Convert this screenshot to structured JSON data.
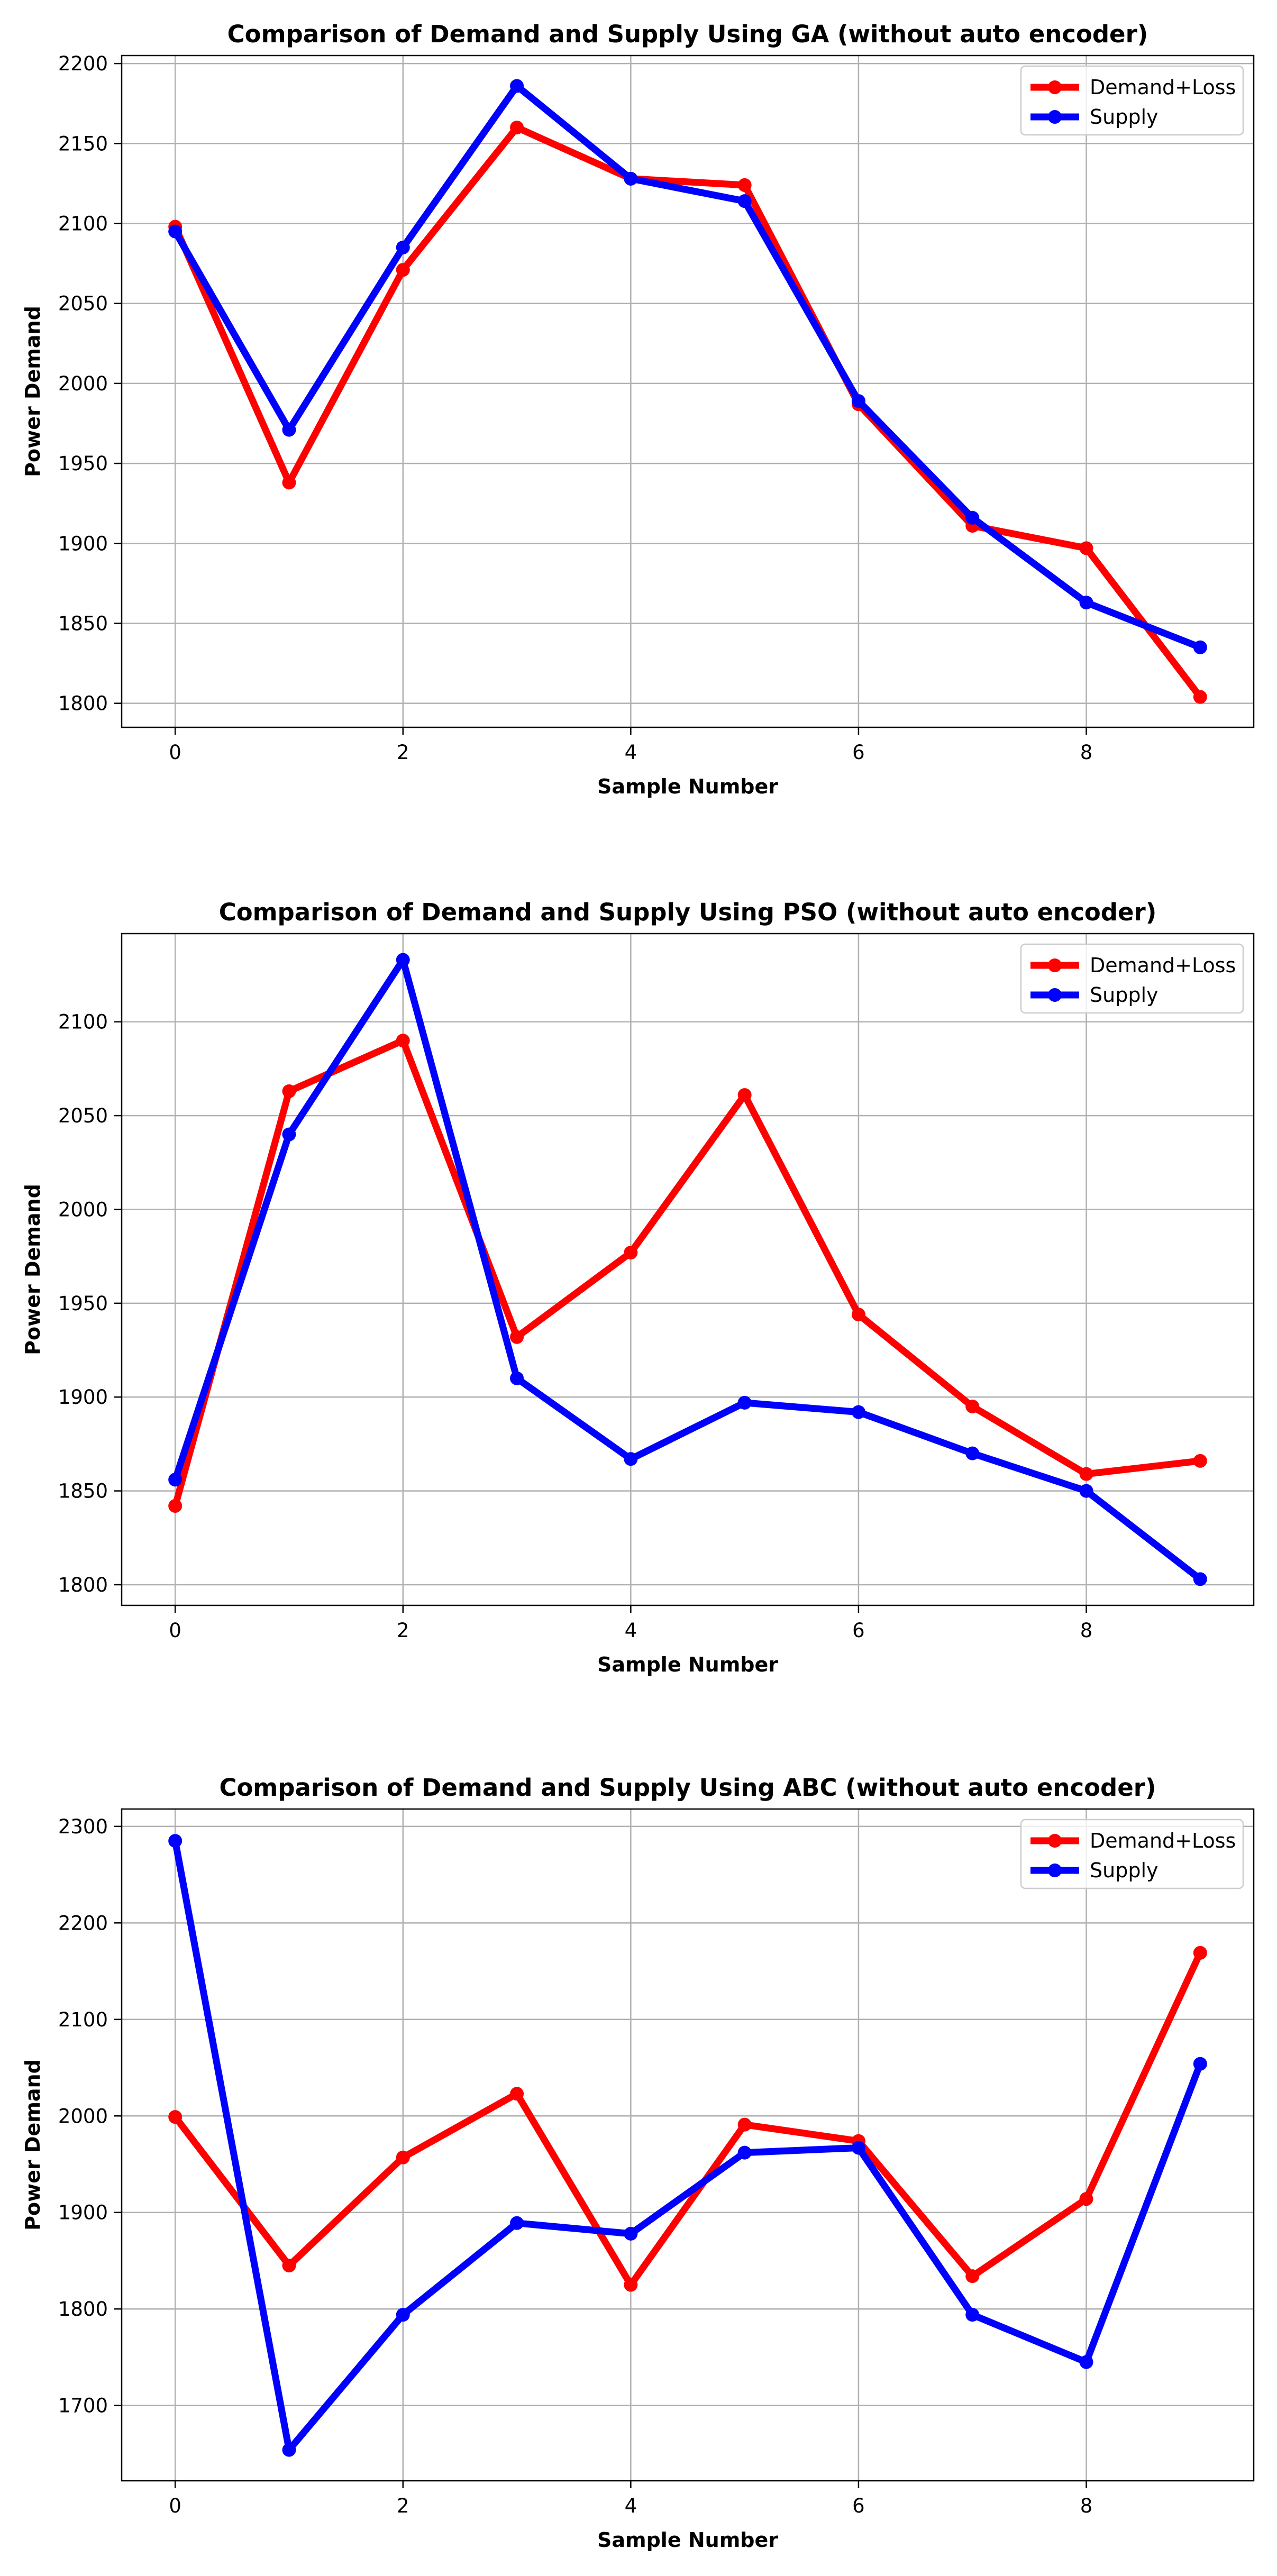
{
  "chart_data": [
    {
      "type": "line",
      "title": "Comparison of Demand and Supply Using GA (without auto encoder)",
      "xlabel": "Sample Number",
      "ylabel": "Power Demand",
      "x": [
        0,
        1,
        2,
        3,
        4,
        5,
        6,
        7,
        8,
        9
      ],
      "xlim": [
        -0.47,
        9.47
      ],
      "ylim": [
        1785,
        2205
      ],
      "xticks": [
        0,
        2,
        4,
        6,
        8
      ],
      "yticks": [
        1800,
        1850,
        1900,
        1950,
        2000,
        2050,
        2100,
        2150,
        2200
      ],
      "grid": true,
      "legend_position": "top-right",
      "series": [
        {
          "name": "Demand+Loss",
          "color": "#ff0000",
          "values": [
            2098,
            1938,
            2071,
            2160,
            2128,
            2124,
            1987,
            1911,
            1897,
            1804
          ]
        },
        {
          "name": "Supply",
          "color": "#0000ff",
          "values": [
            2095,
            1971,
            2085,
            2186,
            2128,
            2114,
            1989,
            1916,
            1863,
            1835
          ]
        }
      ]
    },
    {
      "type": "line",
      "title": "Comparison of Demand and Supply Using PSO (without auto encoder)",
      "xlabel": "Sample Number",
      "ylabel": "Power Demand",
      "x": [
        0,
        1,
        2,
        3,
        4,
        5,
        6,
        7,
        8,
        9
      ],
      "xlim": [
        -0.47,
        9.47
      ],
      "ylim": [
        1789,
        2147
      ],
      "xticks": [
        0,
        2,
        4,
        6,
        8
      ],
      "yticks": [
        1800,
        1850,
        1900,
        1950,
        2000,
        2050,
        2100
      ],
      "grid": true,
      "legend_position": "top-right",
      "series": [
        {
          "name": "Demand+Loss",
          "color": "#ff0000",
          "values": [
            1842,
            2063,
            2090,
            1932,
            1977,
            2061,
            1944,
            1895,
            1859,
            1866
          ]
        },
        {
          "name": "Supply",
          "color": "#0000ff",
          "values": [
            1856,
            2040,
            2133,
            1910,
            1867,
            1897,
            1892,
            1870,
            1850,
            1803
          ]
        }
      ]
    },
    {
      "type": "line",
      "title": "Comparison of Demand and Supply Using ABC (without auto encoder)",
      "xlabel": "Sample Number",
      "ylabel": "Power Demand",
      "x": [
        0,
        1,
        2,
        3,
        4,
        5,
        6,
        7,
        8,
        9
      ],
      "xlim": [
        -0.47,
        9.47
      ],
      "ylim": [
        1622,
        2318
      ],
      "xticks": [
        0,
        2,
        4,
        6,
        8
      ],
      "yticks": [
        1700,
        1800,
        1900,
        2000,
        2100,
        2200,
        2300
      ],
      "grid": true,
      "legend_position": "top-right",
      "series": [
        {
          "name": "Demand+Loss",
          "color": "#ff0000",
          "values": [
            1999,
            1845,
            1957,
            2023,
            1825,
            1991,
            1974,
            1834,
            1914,
            2169
          ]
        },
        {
          "name": "Supply",
          "color": "#0000ff",
          "values": [
            2285,
            1654,
            1794,
            1889,
            1878,
            1962,
            1967,
            1794,
            1745,
            2054
          ]
        }
      ]
    }
  ]
}
